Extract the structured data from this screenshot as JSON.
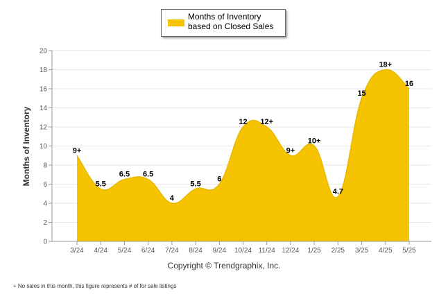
{
  "chart_data": {
    "type": "area",
    "ylabel": "Months of Inventory",
    "xlabel": "",
    "ylim": [
      0,
      20
    ],
    "yticks": [
      0,
      2,
      4,
      6,
      8,
      10,
      12,
      14,
      16,
      18,
      20
    ],
    "grid": true,
    "legend_position": "top-center",
    "categories": [
      "3/24",
      "4/24",
      "5/24",
      "6/24",
      "7/24",
      "8/24",
      "9/24",
      "10/24",
      "11/24",
      "12/24",
      "1/25",
      "2/25",
      "3/25",
      "4/25",
      "5/25"
    ],
    "series": [
      {
        "name": "Months of Inventory based on Closed Sales",
        "values": [
          9,
          5.5,
          6.5,
          6.5,
          4,
          5.5,
          6,
          12,
          12,
          9,
          10,
          4.7,
          15,
          18,
          16
        ],
        "labels": [
          "9+",
          "5.5",
          "6.5",
          "6.5",
          "4",
          "5.5",
          "6",
          "12",
          "12+",
          "9+",
          "10+",
          "4.7",
          "15",
          "18+",
          "16"
        ],
        "color": "#F5C300"
      }
    ]
  },
  "copyright": "Copyright © Trendgraphix, Inc.",
  "footnote": "+  No sales in this month, this figure represents # of for sale listings"
}
